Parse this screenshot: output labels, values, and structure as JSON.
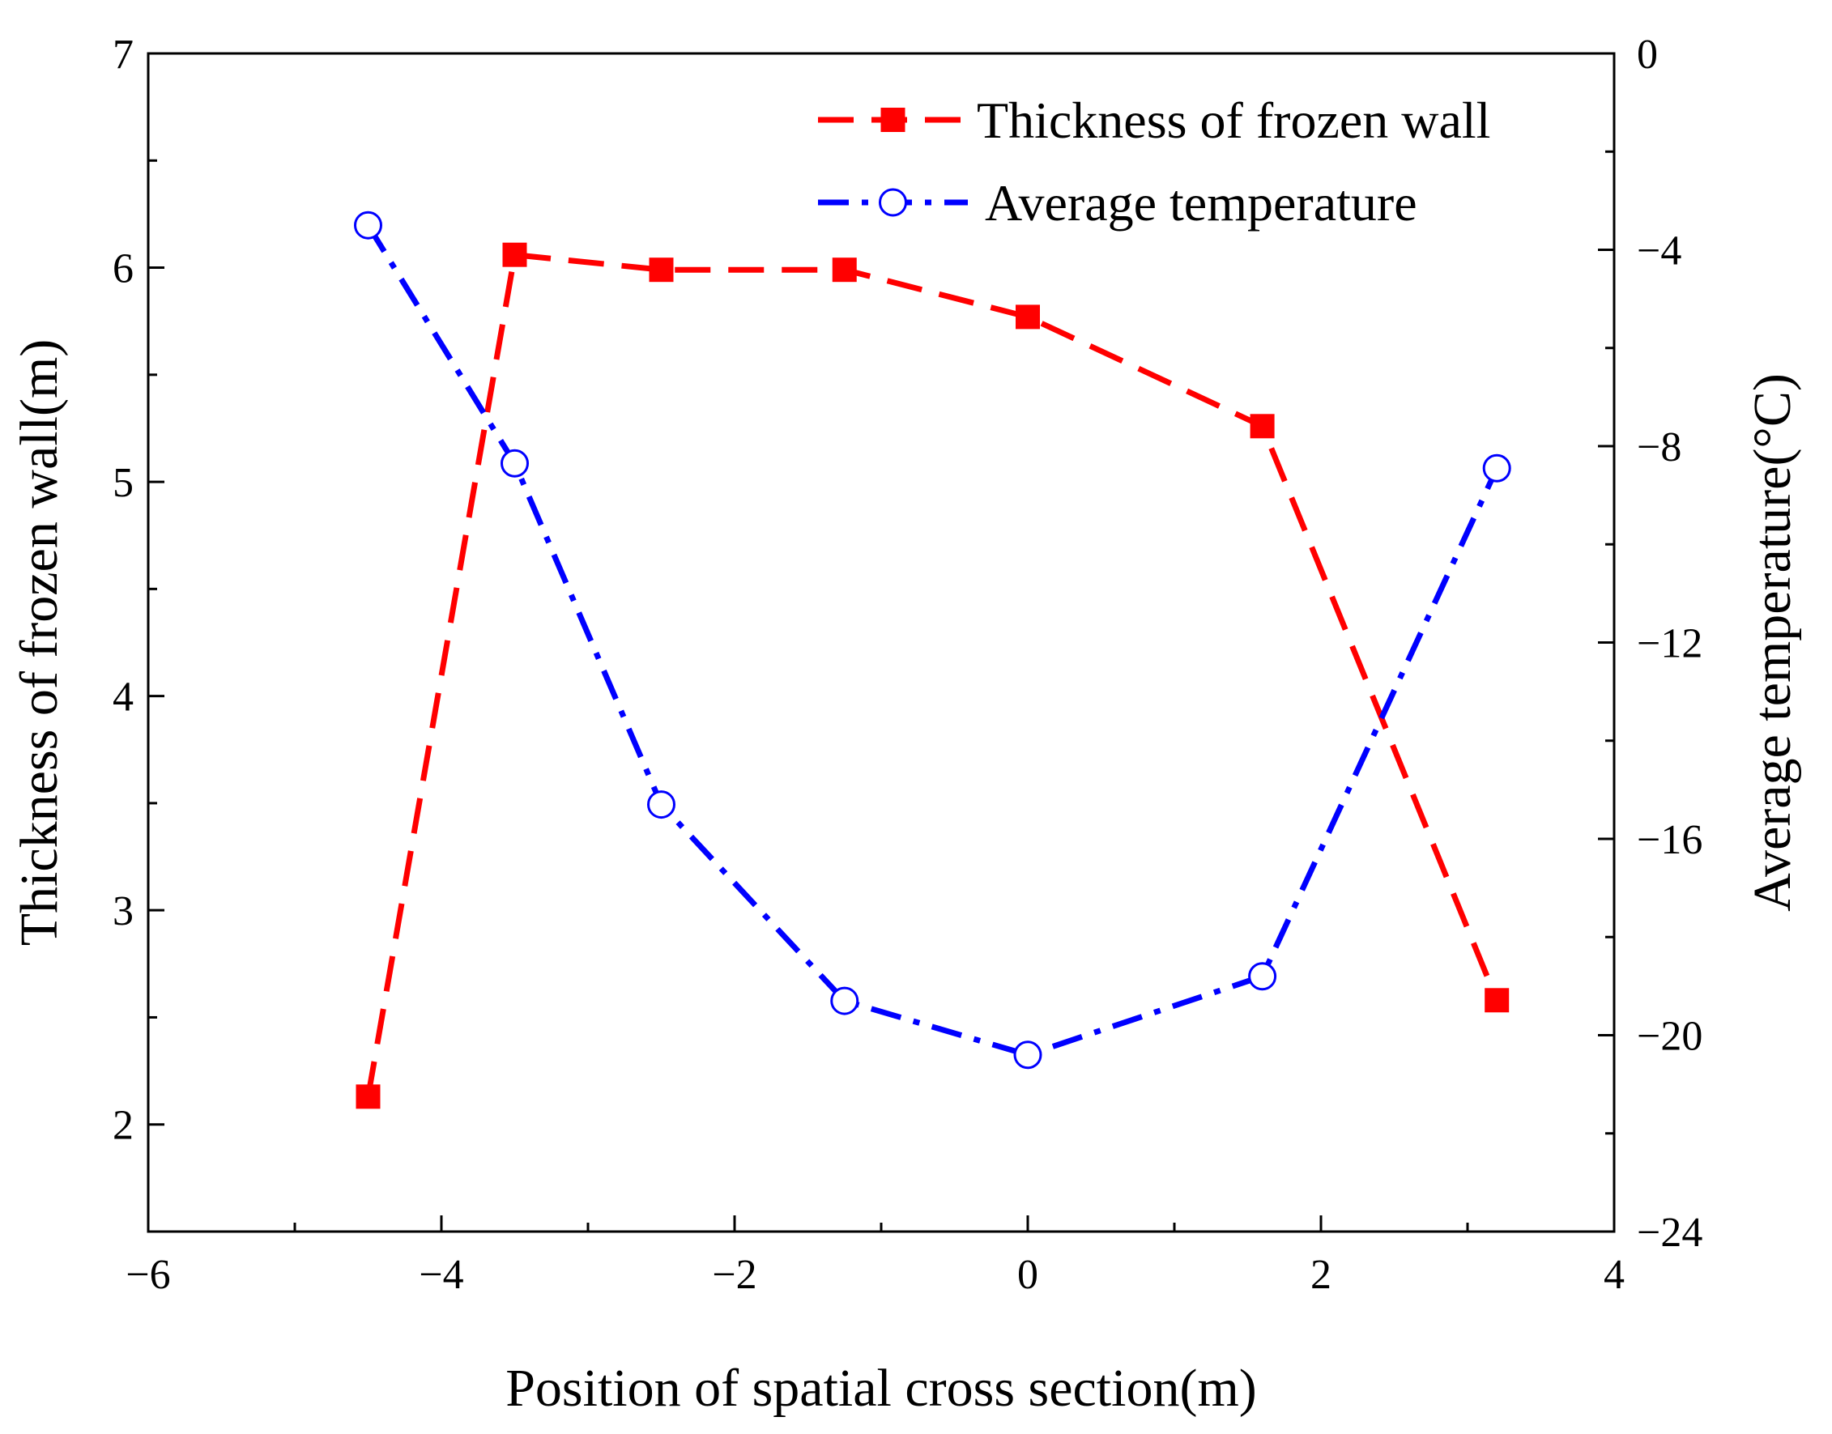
{
  "chart_data": {
    "type": "line",
    "title": "",
    "xlabel": "Position of spatial cross section(m)",
    "ylabel": "Thickness of frozen wall(m)",
    "y2label": "Average temperature(°C)",
    "xlim": [
      -6,
      4
    ],
    "ylim": [
      1.5,
      7
    ],
    "y2lim": [
      -24,
      0
    ],
    "xticks": [
      -6,
      -4,
      -2,
      0,
      2,
      4
    ],
    "xtick_labels": [
      "−6",
      "−4",
      "−2",
      "0",
      "2",
      "4"
    ],
    "yticks": [
      2,
      3,
      4,
      5,
      6,
      7
    ],
    "ytick_labels": [
      "2",
      "3",
      "4",
      "5",
      "6",
      "7"
    ],
    "y2ticks": [
      0,
      -4,
      -8,
      -12,
      -16,
      -20,
      -24
    ],
    "y2tick_labels": [
      "0",
      "−4",
      "−8",
      "−12",
      "−16",
      "−20",
      "−24"
    ],
    "grid": false,
    "legend_position": "top-right",
    "series": [
      {
        "name": "Thickness of frozen wall",
        "axis": "left",
        "color": "#ff0000",
        "line_style": "dashed",
        "marker": "filled-square",
        "x": [
          -4.5,
          -3.5,
          -2.5,
          -1.25,
          0,
          1.6,
          3.2
        ],
        "values": [
          2.13,
          6.06,
          5.99,
          5.99,
          5.77,
          5.26,
          2.58
        ]
      },
      {
        "name": "Average temperature",
        "axis": "right",
        "color": "#0000ff",
        "line_style": "dash-dot",
        "marker": "open-circle",
        "x": [
          -4.5,
          -3.5,
          -2.5,
          -1.25,
          0,
          1.6,
          3.2
        ],
        "values": [
          -3.5,
          -8.35,
          -15.3,
          -19.3,
          -20.4,
          -18.8,
          -8.45
        ]
      }
    ]
  }
}
